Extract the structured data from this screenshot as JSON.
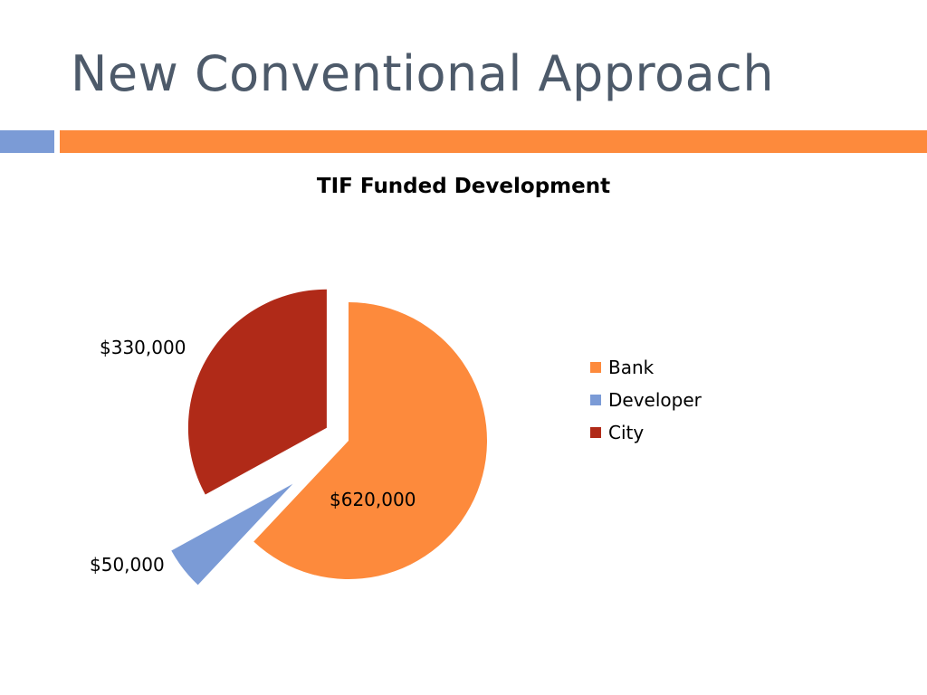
{
  "slide": {
    "title": "New Conventional Approach",
    "accent_left": "#7b9bd6",
    "accent_right": "#fd8a3c"
  },
  "chart_data": {
    "type": "pie",
    "title": "TIF Funded Development",
    "categories": [
      "Bank",
      "Developer",
      "City"
    ],
    "values": [
      620000,
      50000,
      330000
    ],
    "value_labels": [
      "$620,000",
      "$50,000",
      "$330,000"
    ],
    "colors": [
      "#fd8a3c",
      "#7b9bd6",
      "#b02a18"
    ],
    "exploded": true,
    "legend_position": "right"
  }
}
